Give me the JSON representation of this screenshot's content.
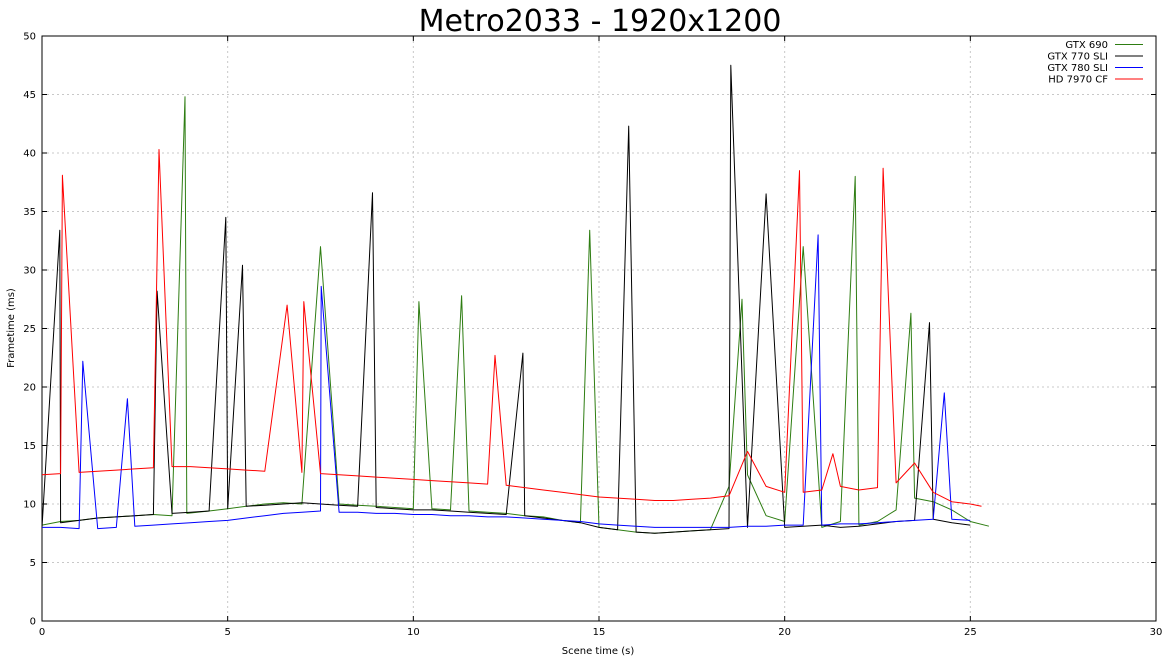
{
  "chart_data": {
    "type": "line",
    "title": "Metro2033 - 1920x1200",
    "xlabel": "Scene time (s)",
    "ylabel": "Frametime (ms)",
    "xlim": [
      0,
      30
    ],
    "ylim": [
      0,
      50
    ],
    "xticks": [
      0,
      5,
      10,
      15,
      20,
      25,
      30
    ],
    "yticks": [
      0,
      5,
      10,
      15,
      20,
      25,
      30,
      35,
      40,
      45,
      50
    ],
    "grid": true,
    "legend_position": "top-right",
    "series": [
      {
        "name": "GTX 690",
        "color": "#2e7d12",
        "x": [
          0.0,
          0.5,
          1.0,
          1.5,
          2.0,
          2.5,
          3.0,
          3.5,
          3.85,
          3.9,
          4.5,
          5.0,
          5.5,
          6.0,
          6.5,
          7.0,
          7.5,
          8.0,
          8.5,
          9.0,
          9.5,
          10.0,
          10.15,
          10.5,
          11.0,
          11.3,
          11.5,
          12.0,
          12.5,
          13.0,
          13.5,
          14.0,
          14.5,
          14.75,
          15.0,
          15.5,
          16.0,
          16.5,
          17.0,
          17.5,
          18.0,
          18.5,
          18.85,
          19.0,
          19.5,
          20.0,
          20.5,
          21.0,
          21.5,
          21.9,
          22.0,
          22.5,
          23.0,
          23.4,
          23.5,
          24.0,
          24.5,
          25.0,
          25.5
        ],
        "y": [
          8.2,
          8.5,
          8.6,
          8.8,
          8.9,
          9.0,
          9.1,
          9.0,
          44.8,
          9.2,
          9.4,
          9.6,
          9.8,
          10.0,
          10.1,
          10.0,
          32.0,
          10.0,
          9.9,
          9.8,
          9.7,
          9.6,
          27.3,
          9.6,
          9.5,
          27.8,
          9.4,
          9.3,
          9.2,
          9.0,
          8.9,
          8.6,
          8.4,
          33.4,
          8.0,
          7.8,
          7.6,
          7.5,
          7.6,
          7.7,
          7.8,
          11.5,
          27.5,
          12.5,
          9.0,
          8.5,
          32.0,
          8.0,
          8.5,
          38.0,
          8.2,
          8.5,
          9.5,
          26.3,
          10.5,
          10.2,
          9.5,
          8.5,
          8.1
        ]
      },
      {
        "name": "GTX 770 SLI",
        "color": "#000000",
        "x": [
          0.0,
          0.48,
          0.5,
          1.0,
          1.5,
          2.0,
          2.5,
          3.0,
          3.1,
          3.5,
          4.0,
          4.5,
          4.95,
          5.0,
          5.4,
          5.5,
          6.0,
          6.5,
          7.0,
          7.5,
          8.0,
          8.5,
          8.9,
          9.0,
          9.5,
          10.0,
          10.5,
          11.0,
          11.5,
          12.0,
          12.5,
          12.95,
          13.0,
          13.5,
          14.0,
          14.5,
          15.0,
          15.5,
          15.8,
          16.0,
          16.5,
          17.0,
          17.5,
          18.0,
          18.5,
          18.55,
          19.0,
          19.5,
          20.0,
          20.5,
          21.0,
          21.5,
          22.0,
          22.5,
          23.0,
          23.5,
          23.9,
          24.0,
          24.5,
          25.0
        ],
        "y": [
          8.0,
          33.4,
          8.4,
          8.6,
          8.8,
          8.9,
          9.0,
          9.1,
          28.2,
          9.2,
          9.3,
          9.4,
          34.5,
          9.6,
          30.4,
          9.8,
          9.9,
          10.0,
          10.1,
          10.0,
          9.9,
          9.8,
          36.6,
          9.7,
          9.6,
          9.5,
          9.5,
          9.4,
          9.3,
          9.2,
          9.1,
          22.9,
          9.0,
          8.8,
          8.6,
          8.4,
          8.0,
          7.8,
          42.3,
          7.6,
          7.5,
          7.6,
          7.7,
          7.8,
          7.9,
          47.5,
          8.0,
          36.5,
          8.0,
          8.1,
          8.2,
          8.0,
          8.1,
          8.3,
          8.5,
          8.6,
          25.5,
          8.7,
          8.4,
          8.2
        ]
      },
      {
        "name": "GTX 780 SLI",
        "color": "#0000ff",
        "x": [
          0.0,
          0.5,
          1.0,
          1.1,
          1.5,
          2.0,
          2.3,
          2.5,
          3.0,
          3.5,
          4.0,
          4.5,
          5.0,
          5.5,
          6.0,
          6.5,
          7.0,
          7.5,
          7.52,
          8.0,
          8.5,
          9.0,
          9.5,
          10.0,
          10.5,
          11.0,
          11.5,
          12.0,
          12.5,
          13.0,
          13.5,
          14.0,
          14.5,
          15.0,
          15.5,
          16.0,
          16.5,
          17.0,
          17.5,
          18.0,
          18.5,
          19.0,
          19.5,
          20.0,
          20.5,
          20.9,
          21.0,
          21.5,
          22.0,
          22.5,
          23.0,
          23.5,
          24.0,
          24.3,
          24.5,
          25.0
        ],
        "y": [
          8.0,
          8.0,
          7.9,
          22.2,
          7.9,
          8.0,
          19.0,
          8.1,
          8.2,
          8.3,
          8.4,
          8.5,
          8.6,
          8.8,
          9.0,
          9.2,
          9.3,
          9.4,
          28.6,
          9.3,
          9.3,
          9.2,
          9.2,
          9.1,
          9.1,
          9.0,
          9.0,
          8.9,
          8.9,
          8.8,
          8.7,
          8.6,
          8.5,
          8.3,
          8.2,
          8.1,
          8.0,
          8.0,
          8.0,
          8.0,
          8.0,
          8.1,
          8.1,
          8.2,
          8.2,
          33.0,
          8.2,
          8.3,
          8.3,
          8.4,
          8.5,
          8.6,
          8.7,
          19.5,
          8.7,
          8.6
        ]
      },
      {
        "name": "HD 7970 CF",
        "color": "#ff0000",
        "x": [
          0.0,
          0.5,
          0.55,
          1.0,
          1.5,
          2.0,
          2.5,
          3.0,
          3.15,
          3.5,
          4.0,
          4.5,
          5.0,
          5.5,
          6.0,
          6.6,
          7.0,
          7.05,
          7.5,
          8.0,
          8.5,
          9.0,
          9.5,
          10.0,
          10.5,
          11.0,
          11.5,
          12.0,
          12.2,
          12.5,
          13.0,
          13.5,
          14.0,
          14.5,
          15.0,
          15.5,
          16.0,
          16.5,
          17.0,
          17.5,
          18.0,
          18.5,
          19.0,
          19.5,
          20.0,
          20.4,
          20.5,
          21.0,
          21.3,
          21.5,
          22.0,
          22.5,
          22.65,
          23.0,
          23.5,
          24.0,
          24.5,
          25.0,
          25.3
        ],
        "y": [
          12.5,
          12.6,
          38.1,
          12.7,
          12.8,
          12.9,
          13.0,
          13.1,
          40.3,
          13.2,
          13.2,
          13.1,
          13.0,
          12.9,
          12.8,
          27.0,
          12.7,
          27.3,
          12.6,
          12.5,
          12.4,
          12.3,
          12.2,
          12.1,
          12.0,
          11.9,
          11.8,
          11.7,
          22.7,
          11.6,
          11.4,
          11.2,
          11.0,
          10.8,
          10.6,
          10.5,
          10.4,
          10.3,
          10.3,
          10.4,
          10.5,
          10.7,
          14.5,
          11.5,
          11.0,
          38.5,
          11.0,
          11.2,
          14.3,
          11.5,
          11.2,
          11.4,
          38.7,
          11.8,
          13.5,
          11.0,
          10.2,
          10.0,
          9.8
        ]
      }
    ]
  }
}
